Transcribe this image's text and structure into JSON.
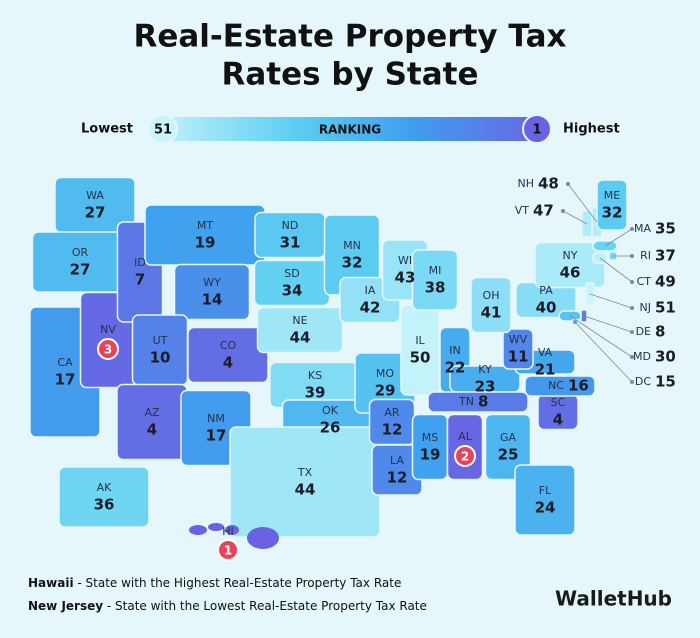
{
  "title_line1": "Real-Estate Property Tax",
  "title_line2": "Rates by State",
  "legend": {
    "low_label": "Lowest",
    "low_rank": "51",
    "center_label": "RANKING",
    "high_rank": "1",
    "high_label": "Highest"
  },
  "states": [
    {
      "abbr": "WA",
      "rank": 27
    },
    {
      "abbr": "OR",
      "rank": 27
    },
    {
      "abbr": "CA",
      "rank": 17
    },
    {
      "abbr": "NV",
      "rank": 3,
      "badge": true
    },
    {
      "abbr": "ID",
      "rank": 7
    },
    {
      "abbr": "MT",
      "rank": 19
    },
    {
      "abbr": "WY",
      "rank": 14
    },
    {
      "abbr": "UT",
      "rank": 10
    },
    {
      "abbr": "CO",
      "rank": 4
    },
    {
      "abbr": "AZ",
      "rank": 4
    },
    {
      "abbr": "NM",
      "rank": 17
    },
    {
      "abbr": "ND",
      "rank": 31
    },
    {
      "abbr": "SD",
      "rank": 34
    },
    {
      "abbr": "NE",
      "rank": 44
    },
    {
      "abbr": "KS",
      "rank": 39
    },
    {
      "abbr": "OK",
      "rank": 26
    },
    {
      "abbr": "TX",
      "rank": 44
    },
    {
      "abbr": "MN",
      "rank": 32
    },
    {
      "abbr": "IA",
      "rank": 42
    },
    {
      "abbr": "MO",
      "rank": 29
    },
    {
      "abbr": "AR",
      "rank": 12
    },
    {
      "abbr": "LA",
      "rank": 12
    },
    {
      "abbr": "WI",
      "rank": 43
    },
    {
      "abbr": "IL",
      "rank": 50
    },
    {
      "abbr": "MI",
      "rank": 38
    },
    {
      "abbr": "IN",
      "rank": 22
    },
    {
      "abbr": "KY",
      "rank": 23
    },
    {
      "abbr": "TN",
      "rank": 8
    },
    {
      "abbr": "MS",
      "rank": 19
    },
    {
      "abbr": "AL",
      "rank": 2,
      "badge": true
    },
    {
      "abbr": "GA",
      "rank": 25
    },
    {
      "abbr": "FL",
      "rank": 24
    },
    {
      "abbr": "SC",
      "rank": 4
    },
    {
      "abbr": "NC",
      "rank": 16
    },
    {
      "abbr": "VA",
      "rank": 21
    },
    {
      "abbr": "WV",
      "rank": 11
    },
    {
      "abbr": "OH",
      "rank": 41
    },
    {
      "abbr": "PA",
      "rank": 40
    },
    {
      "abbr": "NY",
      "rank": 46
    },
    {
      "abbr": "AK",
      "rank": 36
    },
    {
      "abbr": "HI",
      "rank": 1,
      "badge": true
    },
    {
      "abbr": "NH",
      "rank": 48
    },
    {
      "abbr": "VT",
      "rank": 47
    },
    {
      "abbr": "ME",
      "rank": 32
    },
    {
      "abbr": "MA",
      "rank": 35
    },
    {
      "abbr": "RI",
      "rank": 37
    },
    {
      "abbr": "CT",
      "rank": 49
    },
    {
      "abbr": "NJ",
      "rank": 51
    },
    {
      "abbr": "DE",
      "rank": 8
    },
    {
      "abbr": "MD",
      "rank": 30
    },
    {
      "abbr": "DC",
      "rank": 15
    }
  ],
  "footnotes": [
    {
      "state": "Hawaii",
      "text": " - State with the Highest Real-Estate Property Tax Rate"
    },
    {
      "state": "New Jersey",
      "text": " - State with the Lowest Real-Estate Property Tax Rate"
    }
  ],
  "logo": "WalletHub"
}
